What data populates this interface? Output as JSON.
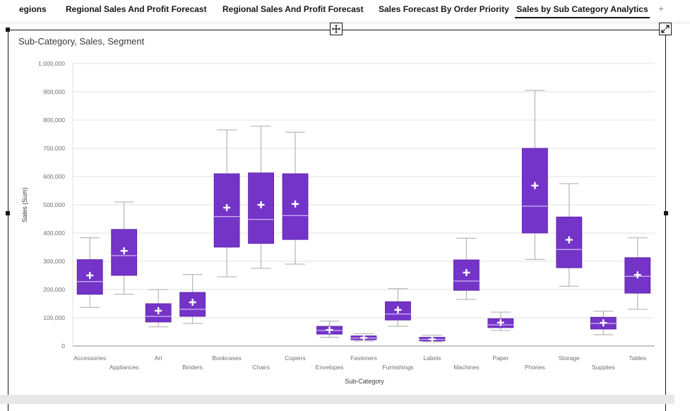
{
  "tabs": [
    {
      "label": "egions",
      "active": false
    },
    {
      "label": "Regional Sales And Profit Forecast",
      "active": false
    },
    {
      "label": "Regional Sales And Profit Forecast",
      "active": false
    },
    {
      "label": "Sales Forecast By Order Priority",
      "active": false
    },
    {
      "label": "Sales by Sub Category Analytics",
      "active": true
    }
  ],
  "add_tab_label": "+",
  "colors": {
    "box_fill": "#7434c8",
    "whisker": "#a8a8a8",
    "grid": "#e0e0e0",
    "axis_text": "#6f6f6f"
  },
  "chart_data": {
    "type": "boxplot",
    "title": "Sub-Category, Sales, Segment",
    "xlabel": "Sub-Category",
    "ylabel": "Sales (Sum)",
    "ylim": [
      0,
      1000000
    ],
    "y_ticks": [
      0,
      100000,
      200000,
      300000,
      400000,
      500000,
      600000,
      700000,
      800000,
      900000,
      1000000
    ],
    "y_tick_labels": [
      "0",
      "100,000",
      "200,000",
      "300,000",
      "400,000",
      "500,000",
      "600,000",
      "700,000",
      "800,000",
      "900,000",
      "1,000,000"
    ],
    "grid": true,
    "categories": [
      "Accessories",
      "Appliances",
      "Art",
      "Binders",
      "Bookcases",
      "Chairs",
      "Copiers",
      "Envelopes",
      "Fasteners",
      "Furnishings",
      "Labels",
      "Machines",
      "Paper",
      "Phones",
      "Storage",
      "Supplies",
      "Tables"
    ],
    "boxes": [
      {
        "category": "Accessories",
        "min": 137000,
        "q1": 183000,
        "median": 228000,
        "q3": 306000,
        "max": 383000,
        "mean": 250000
      },
      {
        "category": "Appliances",
        "min": 183000,
        "q1": 250000,
        "median": 320000,
        "q3": 413000,
        "max": 510000,
        "mean": 337000
      },
      {
        "category": "Art",
        "min": 68000,
        "q1": 85000,
        "median": 105000,
        "q3": 150000,
        "max": 200000,
        "mean": 125000
      },
      {
        "category": "Binders",
        "min": 80000,
        "q1": 105000,
        "median": 130000,
        "q3": 190000,
        "max": 253000,
        "mean": 155000
      },
      {
        "category": "Bookcases",
        "min": 245000,
        "q1": 350000,
        "median": 458000,
        "q3": 610000,
        "max": 765000,
        "mean": 490000
      },
      {
        "category": "Chairs",
        "min": 275000,
        "q1": 363000,
        "median": 448000,
        "q3": 613000,
        "max": 778000,
        "mean": 500000
      },
      {
        "category": "Copiers",
        "min": 290000,
        "q1": 377000,
        "median": 462000,
        "q3": 610000,
        "max": 757000,
        "mean": 503000
      },
      {
        "category": "Envelopes",
        "min": 31000,
        "q1": 42000,
        "median": 55000,
        "q3": 70000,
        "max": 88000,
        "mean": 57000
      },
      {
        "category": "Fasteners",
        "min": 18000,
        "q1": 22000,
        "median": 28000,
        "q3": 36000,
        "max": 43000,
        "mean": 29000
      },
      {
        "category": "Furnishings",
        "min": 70000,
        "q1": 92000,
        "median": 113000,
        "q3": 157000,
        "max": 203000,
        "mean": 128000
      },
      {
        "category": "Labels",
        "min": 15000,
        "q1": 18000,
        "median": 23000,
        "q3": 31000,
        "max": 38000,
        "mean": 24000
      },
      {
        "category": "Machines",
        "min": 165000,
        "q1": 197000,
        "median": 230000,
        "q3": 305000,
        "max": 382000,
        "mean": 260000
      },
      {
        "category": "Paper",
        "min": 55000,
        "q1": 65000,
        "median": 75000,
        "q3": 97000,
        "max": 120000,
        "mean": 83000
      },
      {
        "category": "Phones",
        "min": 307000,
        "q1": 400000,
        "median": 495000,
        "q3": 700000,
        "max": 905000,
        "mean": 568000
      },
      {
        "category": "Storage",
        "min": 212000,
        "q1": 277000,
        "median": 342000,
        "q3": 457000,
        "max": 575000,
        "mean": 376000
      },
      {
        "category": "Supplies",
        "min": 40000,
        "q1": 60000,
        "median": 80000,
        "q3": 102000,
        "max": 123000,
        "mean": 82000
      },
      {
        "category": "Tables",
        "min": 130000,
        "q1": 187000,
        "median": 247000,
        "q3": 313000,
        "max": 383000,
        "mean": 252000
      }
    ]
  }
}
